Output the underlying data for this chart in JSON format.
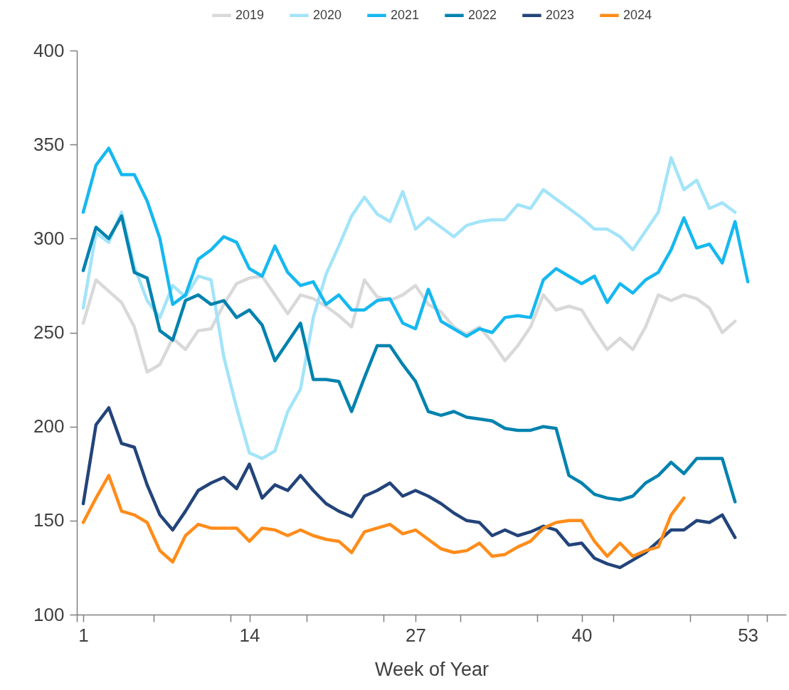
{
  "chart_data": {
    "type": "line",
    "xlabel": "Week of Year",
    "x": [
      1,
      2,
      3,
      4,
      5,
      6,
      7,
      8,
      9,
      10,
      11,
      12,
      13,
      14,
      15,
      16,
      17,
      18,
      19,
      20,
      21,
      22,
      23,
      24,
      25,
      26,
      27,
      28,
      29,
      30,
      31,
      32,
      33,
      34,
      35,
      36,
      37,
      38,
      39,
      40,
      41,
      42,
      43,
      44,
      45,
      46,
      47,
      48,
      49,
      50,
      51,
      52,
      53
    ],
    "xlim": [
      0.5,
      56
    ],
    "xticks": [
      {
        "value": 0.5,
        "label": null
      },
      1,
      {
        "value": 6.5,
        "label": null
      },
      {
        "value": 12.5,
        "label": null
      },
      14,
      {
        "value": 18.5,
        "label": null
      },
      {
        "value": 24.5,
        "label": null
      },
      27,
      {
        "value": 30.5,
        "label": null
      },
      {
        "value": 36.5,
        "label": null
      },
      40,
      {
        "value": 42.5,
        "label": null
      },
      {
        "value": 48.5,
        "label": null
      },
      53,
      {
        "value": 54.5,
        "label": null
      }
    ],
    "ylim": [
      100,
      400
    ],
    "yticks": [
      100,
      150,
      200,
      250,
      300,
      350,
      400
    ],
    "legend": "top",
    "series": [
      {
        "name": "2019",
        "color": "#d9d9d9",
        "values": [
          255,
          278,
          272,
          266,
          253,
          229,
          233,
          247,
          241,
          251,
          252,
          265,
          276,
          279,
          280,
          270,
          260,
          270,
          268,
          264,
          259,
          253,
          278,
          269,
          267,
          270,
          275,
          265,
          261,
          253,
          249,
          253,
          245,
          235,
          243,
          253,
          270,
          262,
          264,
          262,
          251,
          241,
          247,
          241,
          253,
          270,
          267,
          270,
          268,
          263,
          250,
          256,
          null
        ]
      },
      {
        "name": "2020",
        "color": "#a3e4f9",
        "values": [
          263,
          303,
          298,
          314,
          285,
          267,
          258,
          275,
          269,
          280,
          278,
          237,
          210,
          186,
          183,
          187,
          208,
          220,
          258,
          281,
          296,
          312,
          322,
          313,
          309,
          325,
          305,
          311,
          306,
          301,
          307,
          309,
          310,
          310,
          318,
          316,
          326,
          321,
          316,
          311,
          305,
          305,
          301,
          294,
          304,
          314,
          343,
          326,
          331,
          316,
          319,
          314,
          null
        ]
      },
      {
        "name": "2021",
        "color": "#16b8ef",
        "values": [
          314,
          339,
          348,
          334,
          334,
          320,
          300,
          265,
          270,
          289,
          294,
          301,
          298,
          284,
          280,
          296,
          282,
          275,
          277,
          265,
          270,
          262,
          262,
          267,
          268,
          255,
          252,
          273,
          256,
          252,
          248,
          252,
          250,
          258,
          259,
          258,
          278,
          284,
          280,
          276,
          280,
          266,
          276,
          271,
          278,
          282,
          294,
          311,
          295,
          297,
          287,
          309,
          277
        ]
      },
      {
        "name": "2022",
        "color": "#0082ae",
        "values": [
          283,
          306,
          300,
          312,
          282,
          279,
          251,
          246,
          267,
          270,
          265,
          267,
          258,
          262,
          254,
          235,
          245,
          255,
          225,
          225,
          224,
          208,
          226,
          243,
          243,
          233,
          224,
          208,
          206,
          208,
          205,
          204,
          203,
          199,
          198,
          198,
          200,
          199,
          174,
          170,
          164,
          162,
          161,
          163,
          170,
          174,
          181,
          175,
          183,
          183,
          183,
          160,
          null
        ]
      },
      {
        "name": "2023",
        "color": "#23447a",
        "values": [
          159,
          201,
          210,
          191,
          189,
          169,
          153,
          145,
          155,
          166,
          170,
          173,
          167,
          180,
          162,
          169,
          166,
          174,
          166,
          159,
          155,
          152,
          163,
          166,
          170,
          163,
          166,
          163,
          159,
          154,
          150,
          149,
          142,
          145,
          142,
          144,
          147,
          145,
          137,
          138,
          130,
          127,
          125,
          129,
          133,
          139,
          145,
          145,
          150,
          149,
          153,
          141,
          null
        ]
      },
      {
        "name": "2024",
        "color": "#ff8c1a",
        "values": [
          149,
          162,
          174,
          155,
          153,
          149,
          134,
          128,
          142,
          148,
          146,
          146,
          146,
          139,
          146,
          145,
          142,
          145,
          142,
          140,
          139,
          133,
          144,
          146,
          148,
          143,
          145,
          140,
          135,
          133,
          134,
          138,
          131,
          132,
          136,
          139,
          146,
          149,
          150,
          150,
          139,
          131,
          138,
          131,
          134,
          136,
          153,
          162,
          null,
          null,
          null,
          null,
          null
        ]
      }
    ]
  }
}
